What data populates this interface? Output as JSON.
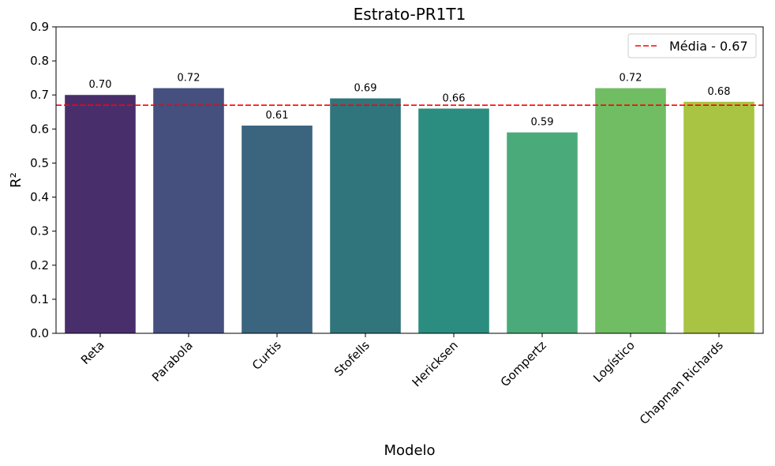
{
  "chart_data": {
    "type": "bar",
    "title": "Estrato-PR1T1",
    "xlabel": "Modelo",
    "ylabel": "R²",
    "categories": [
      "Reta",
      "Parabola",
      "Curtis",
      "Stofells",
      "Hericksen",
      "Gompertz",
      "Logístico",
      "Chapman Richards"
    ],
    "values": [
      0.7,
      0.72,
      0.61,
      0.69,
      0.66,
      0.59,
      0.72,
      0.68
    ],
    "data_labels": [
      "0.70",
      "0.72",
      "0.61",
      "0.69",
      "0.66",
      "0.59",
      "0.72",
      "0.68"
    ],
    "bar_colors": [
      "#482f6b",
      "#46507e",
      "#3b647f",
      "#30747c",
      "#2a8d7f",
      "#4baa7a",
      "#71bd63",
      "#a8c442"
    ],
    "ylim": [
      0,
      0.9
    ],
    "yticks": [
      "0.0",
      "0.1",
      "0.2",
      "0.3",
      "0.4",
      "0.5",
      "0.6",
      "0.7",
      "0.8",
      "0.9"
    ],
    "ytick_values": [
      0,
      0.1,
      0.2,
      0.3,
      0.4,
      0.5,
      0.6,
      0.7,
      0.8,
      0.9
    ],
    "reference_line": {
      "value": 0.67,
      "label": "Média - 0.67",
      "color": "#ff0000",
      "style": "dashed"
    },
    "legend_position": "top-right",
    "grid": false,
    "xtick_rotation": 45
  }
}
